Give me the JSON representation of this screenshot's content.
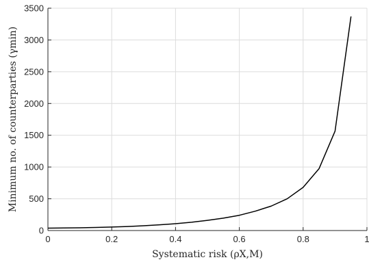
{
  "chart_data": {
    "type": "line",
    "title": "",
    "xlabel": "Systematic risk (ρX,M)",
    "ylabel": "Minimum no. of counterparties (γmin)",
    "xlim": [
      0,
      1
    ],
    "ylim": [
      0,
      3500
    ],
    "grid": true,
    "x_ticks": [
      0,
      0.2,
      0.4,
      0.6,
      0.8,
      1
    ],
    "x_tick_labels": [
      "0",
      "0.2",
      "0.4",
      "0.6",
      "0.8",
      "1"
    ],
    "y_ticks": [
      0,
      500,
      1000,
      1500,
      2000,
      2500,
      3000,
      3500
    ],
    "y_tick_labels": [
      "0",
      "500",
      "1000",
      "1500",
      "2000",
      "2500",
      "3000",
      "3500"
    ],
    "series": [
      {
        "color": "#000000",
        "x": [
          0,
          0.05,
          0.1,
          0.15,
          0.2,
          0.25,
          0.3,
          0.35,
          0.4,
          0.45,
          0.5,
          0.55,
          0.6,
          0.65,
          0.7,
          0.75,
          0.8,
          0.85,
          0.9,
          0.95
        ],
        "y": [
          38,
          40,
          43,
          48,
          55,
          63,
          75,
          90,
          108,
          130,
          160,
          195,
          240,
          305,
          385,
          500,
          680,
          975,
          1565,
          3370
        ]
      }
    ]
  }
}
